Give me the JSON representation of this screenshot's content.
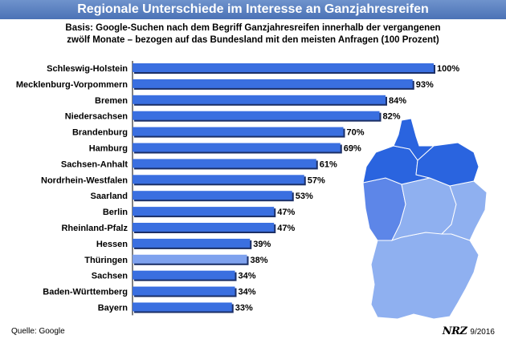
{
  "header": {
    "title": "Regionale Unterschiede im Interesse an Ganzjahresreifen",
    "subtitle_line1": "Basis: Google-Suchen nach dem Begriff Ganzjahresreifen innerhalb der vergangenen",
    "subtitle_line2": "zwölf Monate – bezogen auf das Bundesland mit den meisten Anfragen (100 Prozent)"
  },
  "footer": {
    "source": "Quelle: Google",
    "logo": "NRZ",
    "date": "9/2016"
  },
  "colors": {
    "title_bar": "#4b72b6",
    "bar_fill": "#3a6fe0",
    "bar_light": "#7fa2ee",
    "map_dark": "#2a64df",
    "map_light": "#8fb0f0"
  },
  "chart_data": {
    "type": "bar",
    "orientation": "horizontal",
    "categories": [
      "Schleswig-Holstein",
      "Mecklenburg-Vorpommern",
      "Bremen",
      "Niedersachsen",
      "Brandenburg",
      "Hamburg",
      "Sachsen-Anhalt",
      "Nordrhein-Westfalen",
      "Saarland",
      "Berlin",
      "Rheinland-Pfalz",
      "Hessen",
      "Thüringen",
      "Sachsen",
      "Baden-Württemberg",
      "Bayern"
    ],
    "values": [
      100,
      93,
      84,
      82,
      70,
      69,
      61,
      57,
      53,
      47,
      47,
      39,
      38,
      34,
      34,
      33
    ],
    "value_labels": [
      "100%",
      "93%",
      "84%",
      "82%",
      "70%",
      "69%",
      "61%",
      "57%",
      "53%",
      "47%",
      "47%",
      "39%",
      "38%",
      "34%",
      "34%",
      "33%"
    ],
    "xlim": [
      0,
      100
    ],
    "grid": false,
    "legend": "none"
  }
}
